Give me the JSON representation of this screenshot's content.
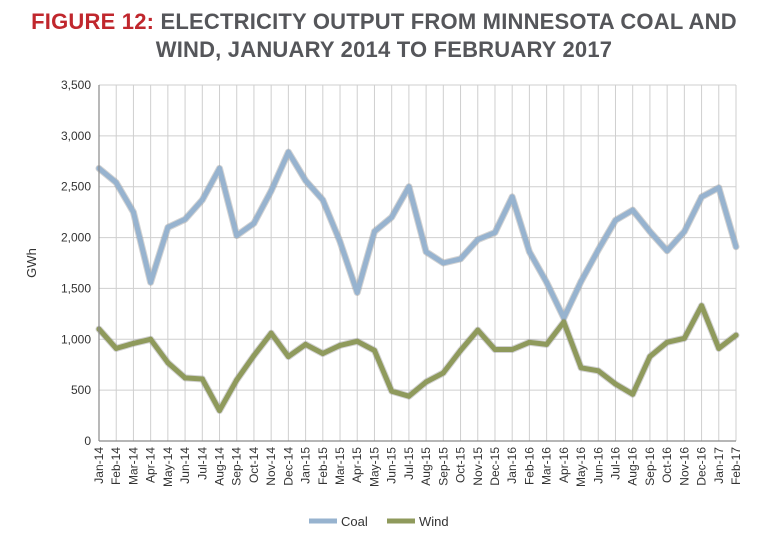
{
  "title": {
    "figure_label": "FIGURE 12:",
    "line1": "ELECTRICITY OUTPUT FROM MINNESOTA COAL AND",
    "line2": "WIND, JANUARY 2014 TO FEBRUARY 2017"
  },
  "colors": {
    "title_accent": "#c0272d",
    "title_text": "#55565a",
    "coal": "#97b3cf",
    "wind": "#8f9a5c",
    "grid": "#cfcfcf"
  },
  "chart_data": {
    "type": "line",
    "title": "FIGURE 12: ELECTRICITY OUTPUT FROM MINNESOTA COAL AND WIND, JANUARY 2014 TO FEBRUARY 2017",
    "xlabel": "",
    "ylabel": "GWh",
    "ylim": [
      0,
      3500
    ],
    "yticks": [
      0,
      500,
      1000,
      1500,
      2000,
      2500,
      3000,
      3500
    ],
    "ytick_labels": [
      "0",
      "500",
      "1,000",
      "1,500",
      "2,000",
      "2,500",
      "3,000",
      "3,500"
    ],
    "grid": true,
    "legend": "bottom",
    "categories": [
      "Jan-14",
      "Feb-14",
      "Mar-14",
      "Apr-14",
      "May-14",
      "Jun-14",
      "Jul-14",
      "Aug-14",
      "Sep-14",
      "Oct-14",
      "Nov-14",
      "Dec-14",
      "Jan-15",
      "Feb-15",
      "Mar-15",
      "Apr-15",
      "May-15",
      "Jun-15",
      "Jul-15",
      "Aug-15",
      "Sep-15",
      "Oct-15",
      "Nov-15",
      "Dec-15",
      "Jan-16",
      "Feb-16",
      "Mar-16",
      "Apr-16",
      "May-16",
      "Jun-16",
      "Jul-16",
      "Aug-16",
      "Sep-16",
      "Oct-16",
      "Nov-16",
      "Dec-16",
      "Jan-17",
      "Feb-17"
    ],
    "series": [
      {
        "name": "Coal",
        "values": [
          2680,
          2540,
          2250,
          1560,
          2100,
          2180,
          2370,
          2680,
          2020,
          2140,
          2460,
          2840,
          2560,
          2370,
          1960,
          1460,
          2060,
          2200,
          2500,
          1860,
          1750,
          1790,
          1980,
          2050,
          2400,
          1860,
          1560,
          1210,
          1570,
          1880,
          2170,
          2270,
          2060,
          1870,
          2060,
          2400,
          2490,
          1910
        ]
      },
      {
        "name": "Wind",
        "values": [
          1100,
          910,
          960,
          1000,
          770,
          620,
          610,
          300,
          600,
          840,
          1060,
          830,
          950,
          860,
          940,
          980,
          890,
          490,
          440,
          580,
          670,
          890,
          1090,
          900,
          900,
          970,
          950,
          1170,
          720,
          690,
          560,
          460,
          830,
          970,
          1010,
          1330,
          910,
          1040
        ]
      }
    ]
  }
}
